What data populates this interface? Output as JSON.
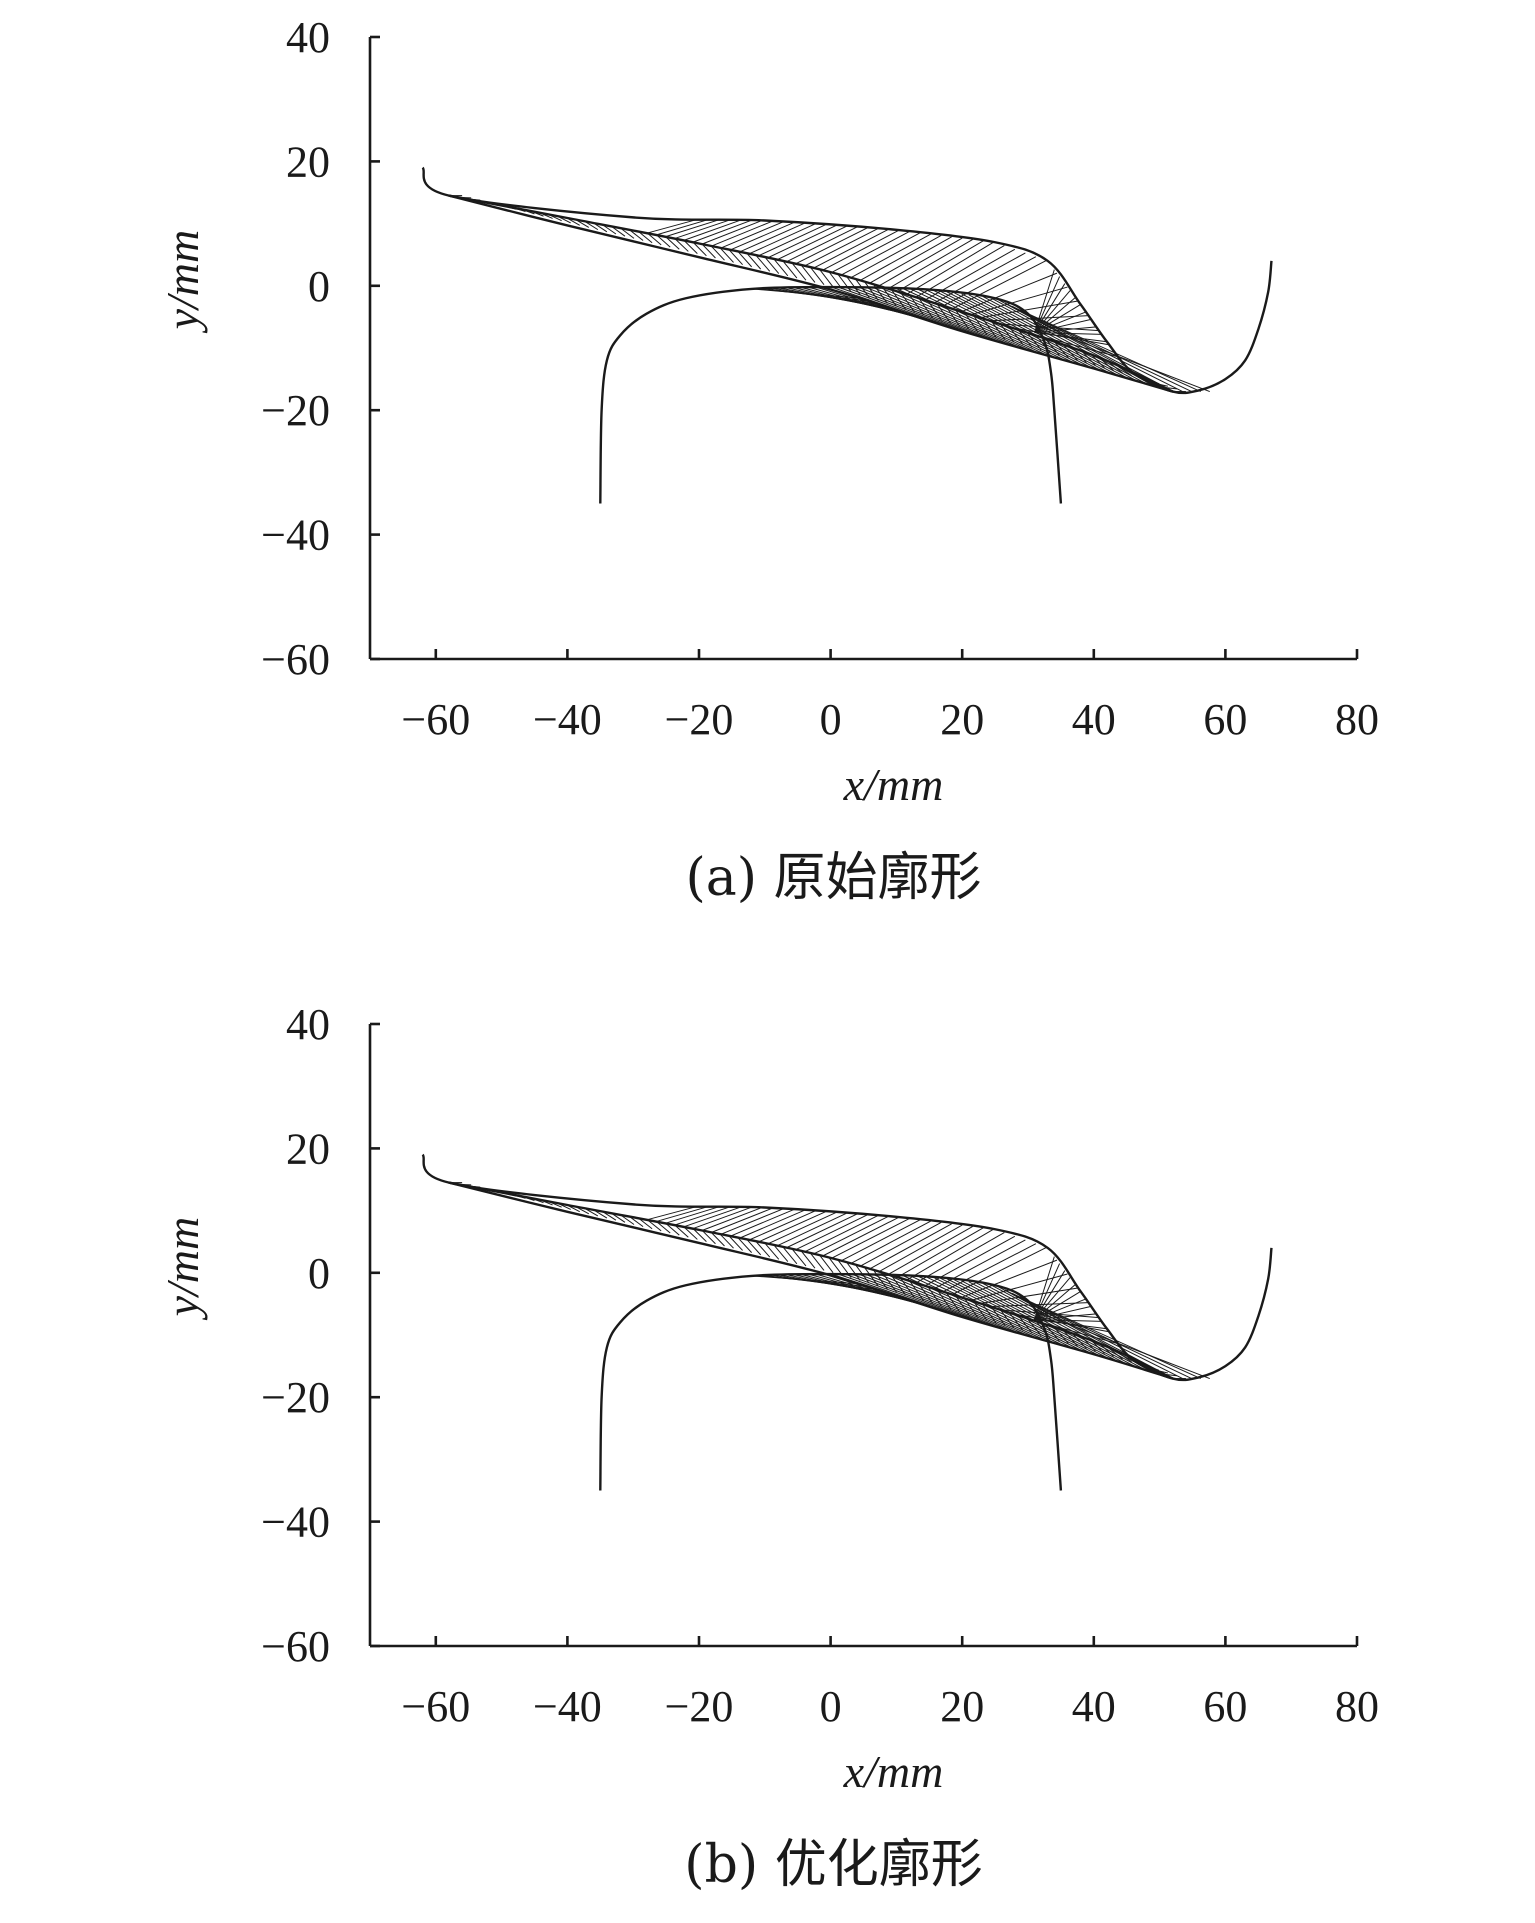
{
  "chart_data": [
    {
      "type": "line",
      "caption": "(a) 原始廓形",
      "xlabel": "x/mm",
      "ylabel": "y/mm",
      "xlim": [
        -70,
        80
      ],
      "ylim": [
        -60,
        40
      ],
      "x_ticks": [
        "−60",
        "−40",
        "−20",
        "0",
        "20",
        "40",
        "60",
        "80"
      ],
      "y_ticks": [
        "40",
        "20",
        "0",
        "−20",
        "−40",
        "−60"
      ],
      "grid": false,
      "series": [
        {
          "x": [
            -62,
            -58,
            -30,
            -10,
            10,
            25,
            33,
            38,
            42,
            46,
            52,
            56,
            60,
            63,
            65,
            66.5,
            67
          ],
          "y": [
            19,
            14.5,
            11,
            10.5,
            9,
            7,
            4,
            -3,
            -9,
            -14,
            -17,
            -16.8,
            -15,
            -12,
            -7,
            -1,
            4
          ]
        },
        {
          "x": [
            -35,
            -34.8,
            -34,
            -32,
            -28,
            -22,
            -12,
            0,
            15,
            25,
            30,
            32.5,
            33.5,
            34,
            35
          ],
          "y": [
            -35,
            -20,
            -12,
            -8,
            -4.5,
            -2,
            -0.5,
            -0.2,
            -0.6,
            -2,
            -4.5,
            -9,
            -14,
            -20,
            -35
          ]
        },
        {
          "x": [
            -58,
            -40,
            -20,
            0,
            20,
            40,
            52
          ],
          "y": [
            14.5,
            10.9,
            6.8,
            2.2,
            -4.2,
            -11.2,
            -17
          ]
        },
        {
          "x": [
            -58,
            -40,
            -20,
            0,
            20,
            40,
            52
          ],
          "y": [
            14.5,
            9.7,
            4.6,
            -0.6,
            -7.3,
            -13.3,
            -17
          ]
        }
      ]
    },
    {
      "type": "line",
      "caption": "(b) 优化廓形",
      "xlabel": "x/mm",
      "ylabel": "y/mm",
      "xlim": [
        -70,
        80
      ],
      "ylim": [
        -60,
        40
      ],
      "x_ticks": [
        "−60",
        "−40",
        "−20",
        "0",
        "20",
        "40",
        "60",
        "80"
      ],
      "y_ticks": [
        "40",
        "20",
        "0",
        "−20",
        "−40",
        "−60"
      ],
      "grid": false,
      "series": [
        {
          "x": [
            -62,
            -58,
            -30,
            -10,
            10,
            25,
            33,
            38,
            42,
            46,
            52,
            56,
            60,
            63,
            65,
            66.5,
            67
          ],
          "y": [
            19,
            14.5,
            11,
            10.5,
            9,
            7,
            4,
            -3,
            -9,
            -14,
            -17,
            -16.8,
            -15,
            -12,
            -7,
            -1,
            4
          ]
        },
        {
          "x": [
            -35,
            -34.8,
            -34,
            -32,
            -28,
            -22,
            -12,
            0,
            15,
            25,
            30,
            32.5,
            33.5,
            34,
            35
          ],
          "y": [
            -35,
            -20,
            -12,
            -8,
            -4.5,
            -2,
            -0.5,
            -0.2,
            -0.6,
            -2,
            -4.5,
            -9,
            -14,
            -20,
            -35
          ]
        },
        {
          "x": [
            -58,
            -40,
            -20,
            0,
            20,
            40,
            52
          ],
          "y": [
            14.5,
            10.9,
            6.9,
            2.4,
            -4.0,
            -11.0,
            -17
          ]
        },
        {
          "x": [
            -58,
            -40,
            -20,
            0,
            20,
            40,
            52
          ],
          "y": [
            14.5,
            9.8,
            4.8,
            -0.4,
            -7.1,
            -13.1,
            -17
          ]
        }
      ]
    }
  ]
}
